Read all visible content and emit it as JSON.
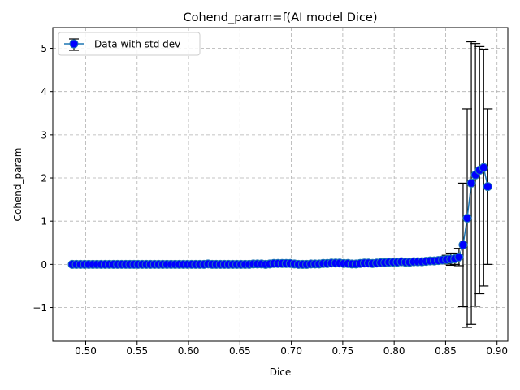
{
  "chart_data": {
    "type": "line",
    "title": "Cohend_param=f(AI model Dice)",
    "xlabel": "Dice",
    "ylabel": "Cohend_param",
    "xlim": [
      0.468,
      0.9105
    ],
    "ylim": [
      -1.78,
      5.48
    ],
    "x_ticks": [
      0.5,
      0.55,
      0.6,
      0.65,
      0.7,
      0.75,
      0.8,
      0.85,
      0.9
    ],
    "x_tick_labels": [
      "0.50",
      "0.55",
      "0.60",
      "0.65",
      "0.70",
      "0.75",
      "0.80",
      "0.85",
      "0.90"
    ],
    "y_ticks": [
      -1,
      0,
      1,
      2,
      3,
      4,
      5
    ],
    "y_tick_labels": [
      "−1",
      "0",
      "1",
      "2",
      "3",
      "4",
      "5"
    ],
    "grid": true,
    "legend_position": "top-left",
    "line_color": "#1f77b4",
    "marker_color": "#0000ff",
    "series": [
      {
        "name": "Data with std dev",
        "x": [
          0.487,
          0.491,
          0.495,
          0.499,
          0.503,
          0.507,
          0.511,
          0.515,
          0.519,
          0.523,
          0.527,
          0.531,
          0.535,
          0.539,
          0.543,
          0.547,
          0.551,
          0.555,
          0.559,
          0.563,
          0.567,
          0.571,
          0.575,
          0.579,
          0.583,
          0.587,
          0.591,
          0.595,
          0.599,
          0.603,
          0.607,
          0.611,
          0.615,
          0.619,
          0.623,
          0.627,
          0.631,
          0.635,
          0.639,
          0.643,
          0.647,
          0.651,
          0.655,
          0.659,
          0.663,
          0.667,
          0.671,
          0.675,
          0.679,
          0.683,
          0.687,
          0.691,
          0.695,
          0.699,
          0.703,
          0.707,
          0.711,
          0.715,
          0.719,
          0.723,
          0.727,
          0.731,
          0.735,
          0.739,
          0.743,
          0.747,
          0.751,
          0.755,
          0.759,
          0.763,
          0.767,
          0.771,
          0.775,
          0.779,
          0.783,
          0.787,
          0.791,
          0.795,
          0.799,
          0.803,
          0.807,
          0.811,
          0.815,
          0.819,
          0.823,
          0.827,
          0.831,
          0.835,
          0.839,
          0.843,
          0.847,
          0.851,
          0.855,
          0.859,
          0.863,
          0.867,
          0.871,
          0.875,
          0.879,
          0.883,
          0.887,
          0.891
        ],
        "y": [
          0.0,
          0.0,
          0.0,
          0.0,
          0.0,
          0.0,
          0.0,
          0.0,
          0.0,
          0.0,
          0.0,
          0.0,
          0.0,
          0.0,
          0.0,
          0.0,
          0.0,
          0.0,
          0.0,
          0.0,
          0.0,
          0.0,
          0.0,
          0.0,
          0.0,
          0.0,
          0.0,
          0.0,
          0.0,
          0.0,
          0.0,
          0.0,
          0.0,
          0.01,
          0.0,
          0.0,
          0.0,
          0.0,
          0.0,
          0.0,
          0.0,
          0.0,
          0.0,
          0.0,
          0.01,
          0.01,
          0.01,
          0.0,
          0.01,
          0.02,
          0.02,
          0.02,
          0.02,
          0.02,
          0.01,
          0.0,
          0.0,
          0.0,
          0.01,
          0.01,
          0.01,
          0.02,
          0.02,
          0.03,
          0.03,
          0.03,
          0.02,
          0.02,
          0.01,
          0.01,
          0.02,
          0.03,
          0.03,
          0.02,
          0.03,
          0.04,
          0.04,
          0.05,
          0.05,
          0.05,
          0.06,
          0.05,
          0.05,
          0.06,
          0.06,
          0.06,
          0.07,
          0.08,
          0.08,
          0.09,
          0.1,
          0.11,
          0.12,
          0.13,
          0.17,
          0.45,
          1.07,
          1.88,
          2.07,
          2.18,
          2.24,
          1.8
        ],
        "err": [
          0,
          0,
          0,
          0,
          0,
          0,
          0,
          0,
          0,
          0,
          0,
          0,
          0,
          0,
          0,
          0,
          0,
          0,
          0,
          0,
          0,
          0,
          0,
          0,
          0,
          0,
          0,
          0,
          0,
          0,
          0,
          0,
          0,
          0,
          0,
          0,
          0,
          0,
          0,
          0,
          0,
          0,
          0,
          0,
          0,
          0,
          0,
          0,
          0,
          0,
          0,
          0,
          0,
          0,
          0,
          0,
          0,
          0,
          0,
          0,
          0,
          0,
          0,
          0,
          0,
          0,
          0,
          0,
          0,
          0,
          0,
          0,
          0,
          0,
          0,
          0,
          0,
          0,
          0,
          0,
          0,
          0,
          0,
          0,
          0,
          0,
          0,
          0,
          0,
          0,
          0.06,
          0.1,
          0.14,
          0.13,
          0.2,
          1.43,
          2.53,
          3.27,
          3.04,
          2.86,
          2.74,
          1.8
        ]
      }
    ]
  }
}
